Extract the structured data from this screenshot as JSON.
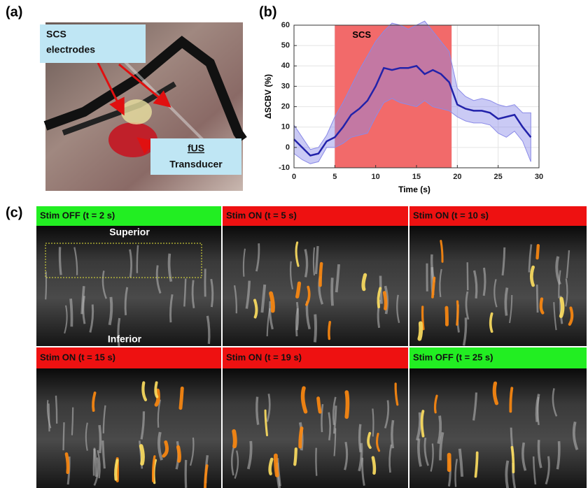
{
  "panel_a": {
    "label": "(a)",
    "callouts": [
      {
        "lines": [
          "SCS",
          "electrodes"
        ]
      },
      {
        "lines": [
          "fUS",
          "Transducer"
        ]
      }
    ]
  },
  "chart_data": {
    "type": "line",
    "label": "(b)",
    "xlabel": "Time (s)",
    "ylabel": "ΔSCBV (%)",
    "x": [
      0,
      1,
      2,
      3,
      4,
      5,
      6,
      7,
      8,
      9,
      10,
      11,
      12,
      13,
      14,
      15,
      16,
      17,
      18,
      19,
      20,
      21,
      22,
      23,
      24,
      25,
      26,
      27,
      28,
      29
    ],
    "series": [
      {
        "color": "#2222aa",
        "band_color": "#8a8ae8",
        "values": [
          4,
          0,
          -4,
          -3,
          3,
          5,
          10,
          16,
          19,
          23,
          30,
          39,
          38,
          39,
          39,
          40,
          36,
          38,
          36,
          32,
          21,
          19,
          18,
          18,
          17,
          14,
          15,
          16,
          10,
          5
        ],
        "upper": [
          11,
          5,
          -1,
          0,
          6,
          15,
          22,
          30,
          38,
          45,
          52,
          57,
          61,
          60,
          58,
          60,
          62,
          57,
          52,
          47,
          29,
          25,
          23,
          24,
          23,
          21,
          20,
          21,
          17,
          17
        ],
        "lower": [
          -3,
          -6,
          -8,
          -7,
          0,
          0,
          2,
          5,
          6,
          7,
          15,
          22,
          24,
          22,
          21,
          20,
          23,
          20,
          19,
          18,
          15,
          13,
          12,
          12,
          11,
          7,
          5,
          8,
          3,
          -7
        ]
      }
    ],
    "shaded": {
      "from": 5,
      "to": 19.3,
      "label": "SCS",
      "color": "#f26a6a"
    },
    "xlim": [
      0,
      30
    ],
    "ylim": [
      -10,
      60
    ],
    "xticks": [
      0,
      5,
      10,
      15,
      20,
      25,
      30
    ],
    "yticks": [
      -10,
      0,
      10,
      20,
      30,
      40,
      50,
      60
    ],
    "grid": true
  },
  "panel_c": {
    "label": "(c)",
    "superior": "Superior",
    "inferior": "Inferior",
    "tiles": [
      {
        "title": "Stim OFF (t = 2 s)",
        "color": "#22ee22",
        "activation": 0
      },
      {
        "title": "Stim ON (t = 5 s)",
        "color": "#ee1111",
        "activation": 0.7
      },
      {
        "title": "Stim ON (t = 10 s)",
        "color": "#ee1111",
        "activation": 0.85
      },
      {
        "title": "Stim ON (t = 15 s)",
        "color": "#ee1111",
        "activation": 1
      },
      {
        "title": "Stim ON (t = 19 s)",
        "color": "#ee1111",
        "activation": 0.95
      },
      {
        "title": "Stim OFF (t = 25 s)",
        "color": "#22ee22",
        "activation": 0.5
      }
    ]
  }
}
